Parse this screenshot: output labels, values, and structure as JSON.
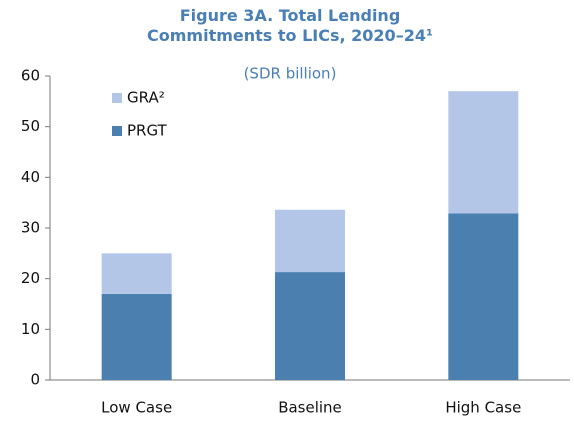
{
  "chart_data": {
    "type": "bar",
    "stacked": true,
    "title": "Figure 3A. Total Lending Commitments to LICs, 2020–24¹",
    "subtitle": "(SDR billion)",
    "categories": [
      "Low Case",
      "Baseline",
      "High Case"
    ],
    "series": [
      {
        "name": "PRGT",
        "color": "#4a7fb0",
        "values": [
          17,
          21.3,
          32.9
        ]
      },
      {
        "name": "GRA²",
        "color": "#b4c6e7",
        "values": [
          8,
          12.3,
          24.1
        ]
      }
    ],
    "ylim": [
      0,
      60
    ],
    "yticks": [
      0,
      10,
      20,
      30,
      40,
      50,
      60
    ],
    "grid": false
  }
}
